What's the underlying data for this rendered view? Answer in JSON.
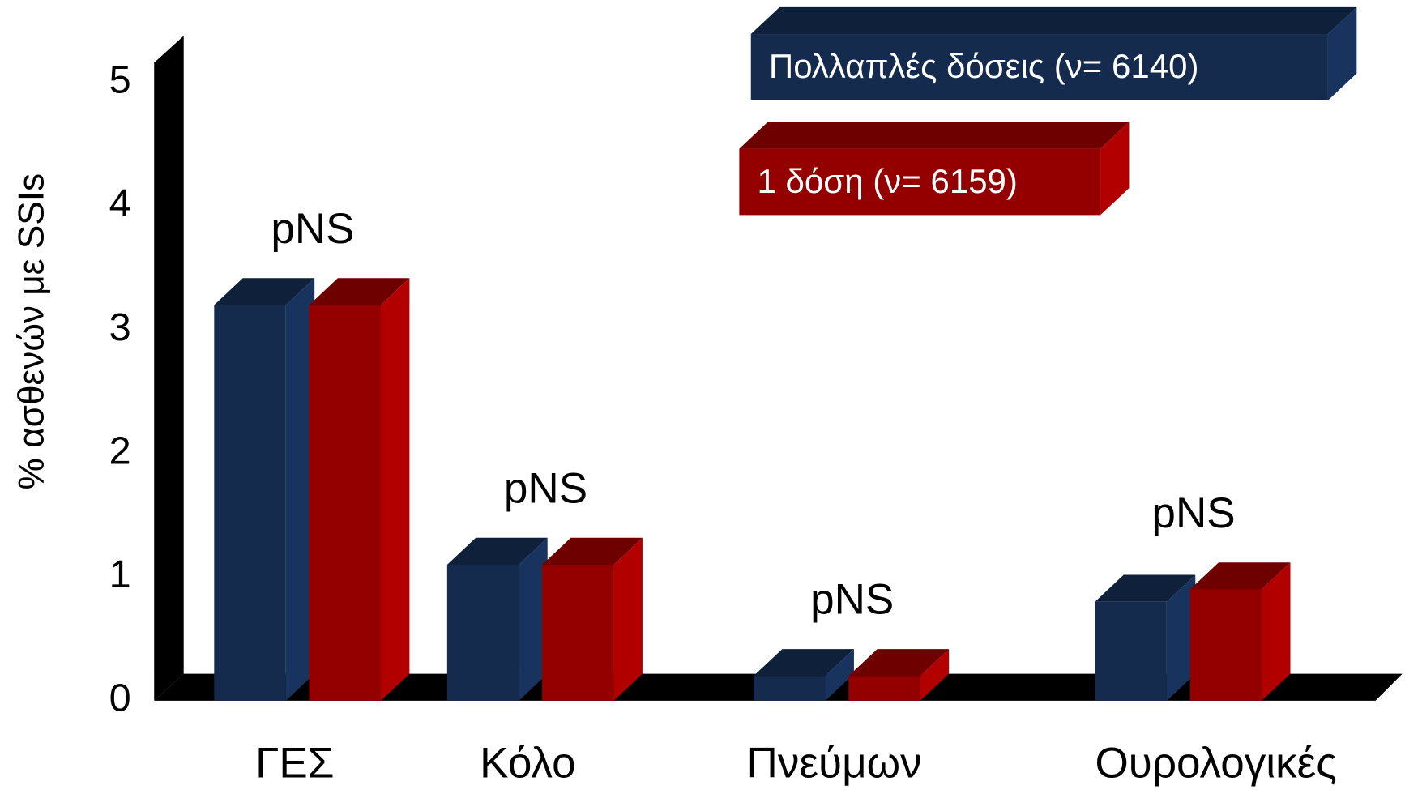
{
  "chart_data": {
    "type": "bar3d",
    "y_label": "% ασθενών με SSIs",
    "categories": [
      "ΓΕΣ",
      "Κόλο",
      "Πνεύμων",
      "Ουρολογικές"
    ],
    "annotations": [
      "pNS",
      "pNS",
      "pNS",
      "pNS"
    ],
    "series": [
      {
        "name": "Πολλαπλές δόσεις (ν= 6140)",
        "color": "#142b4e",
        "values": [
          3.2,
          1.1,
          0.2,
          0.8
        ]
      },
      {
        "name": "1 δόση (ν= 6159)",
        "color": "#940000",
        "values": [
          3.2,
          1.1,
          0.2,
          0.9
        ]
      }
    ],
    "ylim": [
      0,
      5
    ],
    "yticks": [
      0,
      1,
      2,
      3,
      4,
      5
    ],
    "grid": false
  }
}
